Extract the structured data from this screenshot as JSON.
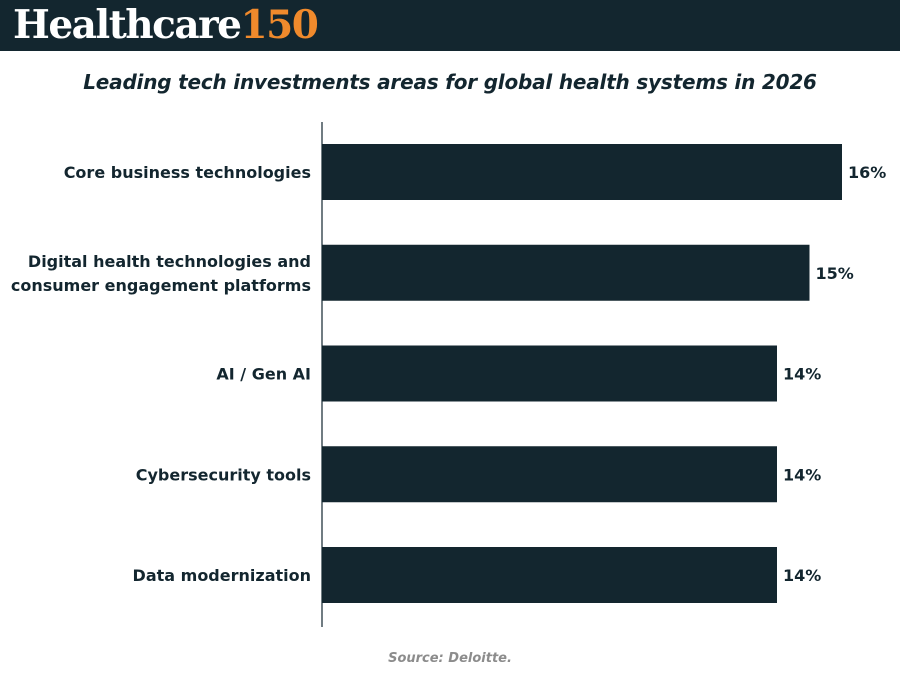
{
  "brand": {
    "word": "Healthcare",
    "number": "150"
  },
  "colors": {
    "header_bg": "#13262f",
    "bar": "#13262f",
    "brand_accent": "#f08a2c",
    "source_text": "#8c8c8c"
  },
  "source": "Source: Deloitte.",
  "chart_data": {
    "type": "bar",
    "orientation": "horizontal",
    "title": "Leading tech investments areas for global health systems in 2026",
    "xlabel": "",
    "ylabel": "",
    "categories": [
      [
        "Core business technologies"
      ],
      [
        "Digital health technologies and",
        "consumer engagement platforms"
      ],
      [
        "AI / Gen AI"
      ],
      [
        "Cybersecurity tools"
      ],
      [
        "Data modernization"
      ]
    ],
    "values": [
      16,
      15,
      14,
      14,
      14
    ],
    "value_labels": [
      "16%",
      "15%",
      "14%",
      "14%",
      "14%"
    ],
    "unit": "%",
    "xlim": [
      0,
      16
    ],
    "grid": false,
    "legend": "none"
  }
}
